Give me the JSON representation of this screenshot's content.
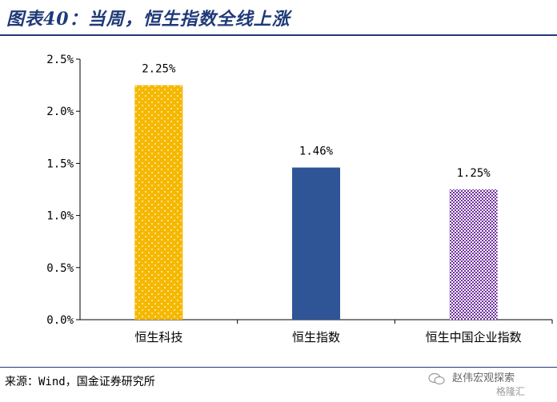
{
  "header": {
    "title": "图表40：当周，恒生指数全线上涨"
  },
  "footer": {
    "source": "来源：Wind，国金证券研究所",
    "brand": "赵伟宏观探索",
    "brand2": "格隆汇"
  },
  "chart_data": {
    "type": "bar",
    "categories": [
      "恒生科技",
      "恒生指数",
      "恒生中国企业指数"
    ],
    "values": [
      2.25,
      1.46,
      1.25
    ],
    "data_labels": [
      "2.25%",
      "1.46%",
      "1.25%"
    ],
    "ylim": [
      0,
      2.5
    ],
    "yticks": [
      0,
      0.5,
      1.0,
      1.5,
      2.0,
      2.5
    ],
    "ytick_labels": [
      "0.0%",
      "0.5%",
      "1.0%",
      "1.5%",
      "2.0%",
      "2.5%"
    ],
    "colors": [
      "#f5b800",
      "#2f5597",
      "#7030a0"
    ],
    "patterns": [
      "dots",
      "solid",
      "checker"
    ],
    "grid": false,
    "legend": "none"
  }
}
